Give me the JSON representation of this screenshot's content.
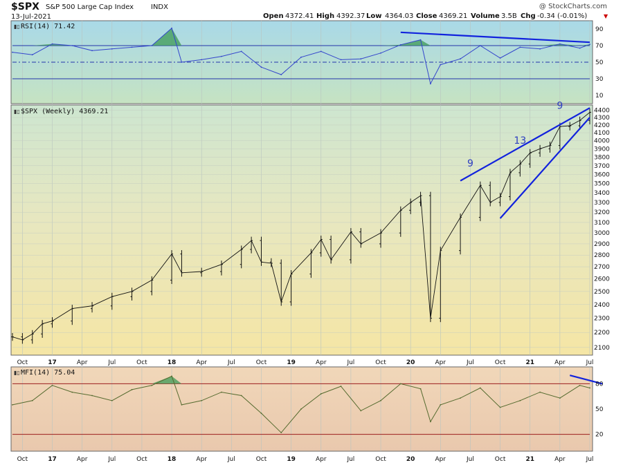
{
  "header": {
    "symbol": "$SPX",
    "name": "S&P 500 Large Cap Index",
    "exchange": "INDX",
    "date": "13-Jul-2021",
    "watermark": "@ StockCharts.com",
    "quote": {
      "open_label": "Open",
      "open": "4372.41",
      "high_label": "High",
      "high": "4392.37",
      "low_label": "Low",
      "low": "4364.03",
      "close_label": "Close",
      "close": "4369.21",
      "volume_label": "Volume",
      "volume": "3.5B",
      "chg_label": "Chg",
      "chg": "-0.34 (-0.01%)"
    }
  },
  "colors": {
    "line": "#3344cc",
    "trend": "#1122dd",
    "mfi_line": "#556b2f",
    "red_ref": "#9b1c1c",
    "green_fill": "#3d9a55"
  },
  "chart_data": [
    {
      "type": "line",
      "name": "rsi_panel",
      "title": "RSI(14) 71.42",
      "ylim": [
        0,
        100
      ],
      "yticks": [
        10,
        30,
        50,
        70,
        90
      ],
      "reference_lines": [
        30,
        50,
        70
      ],
      "x": [
        "2016-09",
        "2016-11",
        "2017-01",
        "2017-03",
        "2017-05",
        "2017-07",
        "2017-09",
        "2017-11",
        "2018-01",
        "2018-02",
        "2018-04",
        "2018-06",
        "2018-08",
        "2018-10",
        "2018-12",
        "2019-02",
        "2019-04",
        "2019-06",
        "2019-08",
        "2019-10",
        "2019-12",
        "2020-02",
        "2020-03",
        "2020-04",
        "2020-06",
        "2020-08",
        "2020-10",
        "2020-12",
        "2021-02",
        "2021-04",
        "2021-06",
        "2021-07"
      ],
      "values": [
        62,
        59,
        72,
        70,
        64,
        66,
        68,
        70,
        91,
        50,
        53,
        57,
        63,
        44,
        35,
        56,
        63,
        53,
        54,
        61,
        71,
        77,
        24,
        47,
        54,
        70,
        55,
        68,
        66,
        72,
        67,
        71.42
      ],
      "trendline": {
        "from": [
          "2019-12",
          86
        ],
        "to": [
          "2021-07",
          74
        ]
      }
    },
    {
      "type": "line",
      "name": "price_panel",
      "title": "$SPX (Weekly) 4369.21",
      "yscale": "log",
      "ylim": [
        2050,
        4470
      ],
      "yticks": [
        2100,
        2200,
        2300,
        2400,
        2500,
        2600,
        2700,
        2800,
        2900,
        3000,
        3100,
        3200,
        3300,
        3400,
        3500,
        3600,
        3700,
        3800,
        3900,
        4000,
        4100,
        4200,
        4300,
        4400
      ],
      "xticks": [
        "Oct",
        "17",
        "Apr",
        "Jul",
        "Oct",
        "18",
        "Apr",
        "Jul",
        "Oct",
        "19",
        "Apr",
        "Jul",
        "Oct",
        "20",
        "Apr",
        "Jul",
        "Oct",
        "21",
        "Apr",
        "Jul"
      ],
      "x": [
        "2016-09",
        "2016-10",
        "2016-11",
        "2016-12",
        "2017-01",
        "2017-03",
        "2017-05",
        "2017-07",
        "2017-09",
        "2017-11",
        "2018-01",
        "2018-02",
        "2018-04",
        "2018-06",
        "2018-08",
        "2018-09",
        "2018-10",
        "2018-11",
        "2018-12",
        "2019-01",
        "2019-03",
        "2019-04",
        "2019-05",
        "2019-07",
        "2019-08",
        "2019-10",
        "2019-12",
        "2020-01",
        "2020-02",
        "2020-03",
        "2020-04",
        "2020-06",
        "2020-08",
        "2020-09",
        "2020-10",
        "2020-11",
        "2020-12",
        "2021-01",
        "2021-02",
        "2021-03",
        "2021-04",
        "2021-05",
        "2021-06",
        "2021-07"
      ],
      "values": [
        2170,
        2150,
        2190,
        2260,
        2280,
        2370,
        2390,
        2460,
        2500,
        2590,
        2810,
        2650,
        2660,
        2720,
        2850,
        2930,
        2740,
        2730,
        2420,
        2640,
        2820,
        2940,
        2760,
        3010,
        2900,
        3000,
        3220,
        3300,
        3370,
        2300,
        2840,
        3150,
        3480,
        3300,
        3360,
        3620,
        3720,
        3850,
        3900,
        3940,
        4180,
        4190,
        4260,
        4369.21
      ],
      "annotations": [
        "9",
        "13",
        "9"
      ],
      "wedge_upper": {
        "from": [
          "2020-06",
          3530
        ],
        "to": [
          "2021-07",
          4430
        ]
      },
      "wedge_lower": {
        "from": [
          "2020-10",
          3140
        ],
        "to": [
          "2021-07",
          4300
        ]
      }
    },
    {
      "type": "line",
      "name": "mfi_panel",
      "title": "MFI(14) 75.04",
      "ylim": [
        0,
        100
      ],
      "yticks": [
        20,
        50,
        80
      ],
      "reference_lines": [
        20,
        80
      ],
      "x": [
        "2016-09",
        "2016-11",
        "2017-01",
        "2017-03",
        "2017-05",
        "2017-07",
        "2017-09",
        "2017-11",
        "2018-01",
        "2018-02",
        "2018-04",
        "2018-06",
        "2018-08",
        "2018-10",
        "2018-12",
        "2019-02",
        "2019-04",
        "2019-06",
        "2019-08",
        "2019-10",
        "2019-12",
        "2020-02",
        "2020-03",
        "2020-04",
        "2020-06",
        "2020-08",
        "2020-10",
        "2020-12",
        "2021-02",
        "2021-04",
        "2021-06",
        "2021-07"
      ],
      "values": [
        55,
        60,
        78,
        70,
        66,
        60,
        73,
        78,
        89,
        55,
        60,
        70,
        66,
        45,
        22,
        50,
        68,
        77,
        48,
        60,
        80,
        74,
        35,
        55,
        63,
        75,
        52,
        60,
        70,
        63,
        78,
        75.04
      ],
      "trendline": {
        "from": [
          "2021-05",
          90
        ],
        "to": [
          "2021-07",
          80
        ]
      }
    }
  ]
}
